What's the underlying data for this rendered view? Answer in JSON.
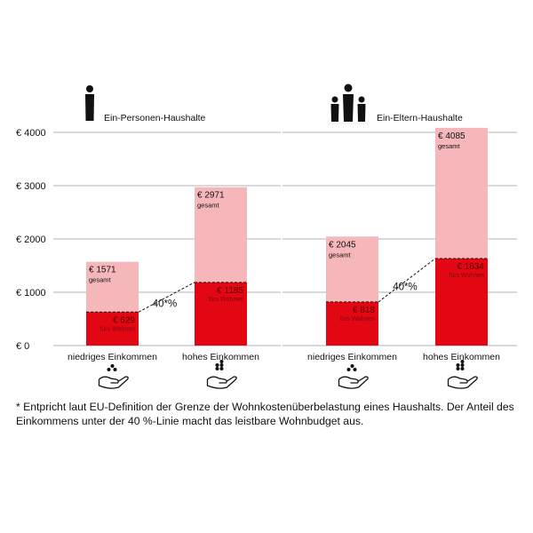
{
  "chart_data": [
    {
      "type": "bar",
      "title": "Ein-Personen-Haushalte",
      "icon": "single-person-icon",
      "categories": [
        "niedriges Einkommen",
        "hohes Einkommen"
      ],
      "series": [
        {
          "name": "gesamt",
          "values": [
            1571,
            2971
          ],
          "labels": [
            "€ 1571",
            "€ 2971"
          ],
          "sublabel": "gesamt",
          "color": "#f6b7bb"
        },
        {
          "name": "fürs Wohnen",
          "values": [
            629,
            1185
          ],
          "labels": [
            "€ 629",
            "€ 1185"
          ],
          "sublabel": "fürs Wohnen",
          "color": "#e30613"
        }
      ],
      "annotation": "40*%",
      "yticks": [
        0,
        1000,
        2000,
        3000,
        4000
      ],
      "ytick_labels": [
        "€ 0",
        "€ 1000",
        "€ 2000",
        "€ 3000",
        "€ 4000"
      ],
      "ylim": [
        0,
        4000
      ],
      "grid": true
    },
    {
      "type": "bar",
      "title": "Ein-Eltern-Haushalte",
      "icon": "parent-with-children-icon",
      "categories": [
        "niedriges Einkommen",
        "hohes Einkommen"
      ],
      "series": [
        {
          "name": "gesamt",
          "values": [
            2045,
            4085
          ],
          "labels": [
            "€ 2045",
            "€ 4085"
          ],
          "sublabel": "gesamt",
          "color": "#f6b7bb"
        },
        {
          "name": "fürs Wohnen",
          "values": [
            818,
            1634
          ],
          "labels": [
            "€ 818",
            "€ 1634"
          ],
          "sublabel": "fürs Wohnen",
          "color": "#e30613"
        }
      ],
      "annotation": "40*%",
      "ylim": [
        0,
        4000
      ],
      "grid": true
    }
  ],
  "category_icons": [
    "low-income-hand-coins-icon",
    "high-income-hand-coins-icon"
  ],
  "footnote": "* Entpricht laut EU-Definition der Grenze der Wohnkostenüberbelastung eines Haushalts. Der Anteil des Einkommens unter der 40 %-Linie macht das leistbare Wohnbudget aus."
}
